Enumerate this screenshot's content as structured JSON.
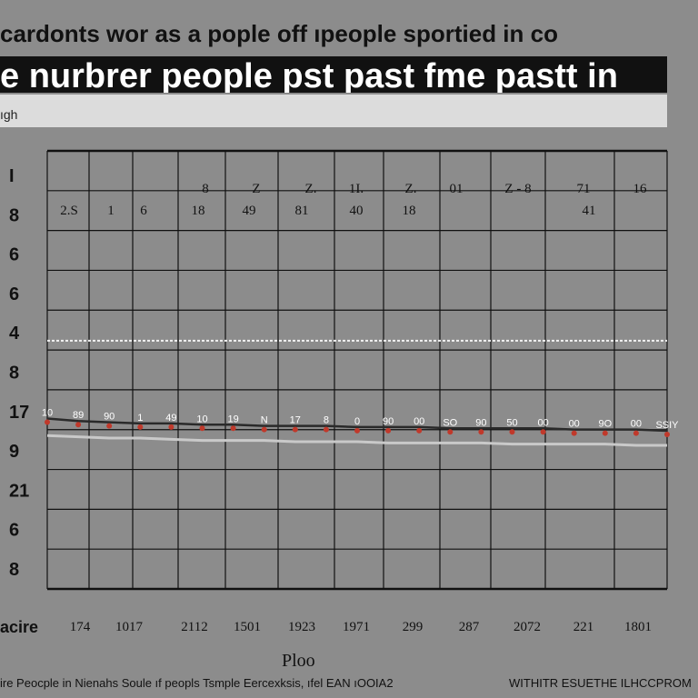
{
  "chart_data": {
    "type": "line",
    "supertitle": "cardonts wor as a pople off ıpeople sportied in co",
    "title": "e nurbrer people pst past fme pastt in",
    "subtitle": "ıgh",
    "corner_label": "acire",
    "xlabel": "Ploo",
    "footer_left": "ire Peocple in Nienahs Soule ıf peopls Tsmple Eercexksis, ıfel EAN ıOOIA2",
    "footer_right": "WITHITR ESUETHE ILHCCPROM",
    "y_tick_labels": [
      "I",
      "8",
      "6",
      "6",
      "4",
      "8",
      "17",
      "9",
      "21",
      "6",
      "8"
    ],
    "x_tick_labels": [
      "174",
      "1017",
      "2112",
      "1501",
      "1923",
      "1971",
      "299",
      "287",
      "2072",
      "221",
      "1801"
    ],
    "top_row_labels": [
      "8",
      "Z",
      "Z.",
      "1I.",
      "Z.",
      "01",
      "Z - 8",
      "71",
      "16"
    ],
    "second_row_labels": [
      "2.S",
      "1",
      "6",
      "18",
      "49",
      "81",
      "40",
      "18",
      "41"
    ],
    "series_point_labels": [
      "10",
      "89",
      "90",
      "1",
      "49",
      "10",
      "19",
      "N",
      "17",
      "8",
      "0",
      "90",
      "00",
      "SO",
      "90",
      "50",
      "00",
      "00",
      "9O",
      "00",
      "SSIY"
    ],
    "series": [
      {
        "values": [
          7.0,
          6.9,
          6.85,
          6.8,
          6.8,
          6.75,
          6.75,
          6.7,
          6.7,
          6.7,
          6.65,
          6.65,
          6.65,
          6.6,
          6.6,
          6.6,
          6.6,
          6.55,
          6.55,
          6.55,
          6.5
        ],
        "color": "#2a2a2a"
      },
      {
        "values": [
          6.3,
          6.25,
          6.2,
          6.2,
          6.15,
          6.1,
          6.1,
          6.1,
          6.05,
          6.05,
          6.05,
          6.0,
          6.0,
          6.0,
          6.0,
          5.95,
          5.95,
          5.95,
          5.95,
          5.9,
          5.9
        ],
        "color": "#c9c9c9"
      }
    ],
    "reference_line": {
      "value": 10.2,
      "style": "dashed"
    },
    "ylim": [
      0,
      18
    ],
    "grid": true,
    "colors": {
      "background": "#8c8c8c",
      "grid": "#111111",
      "marker": "#c0392b",
      "title_bg": "#111111"
    }
  }
}
